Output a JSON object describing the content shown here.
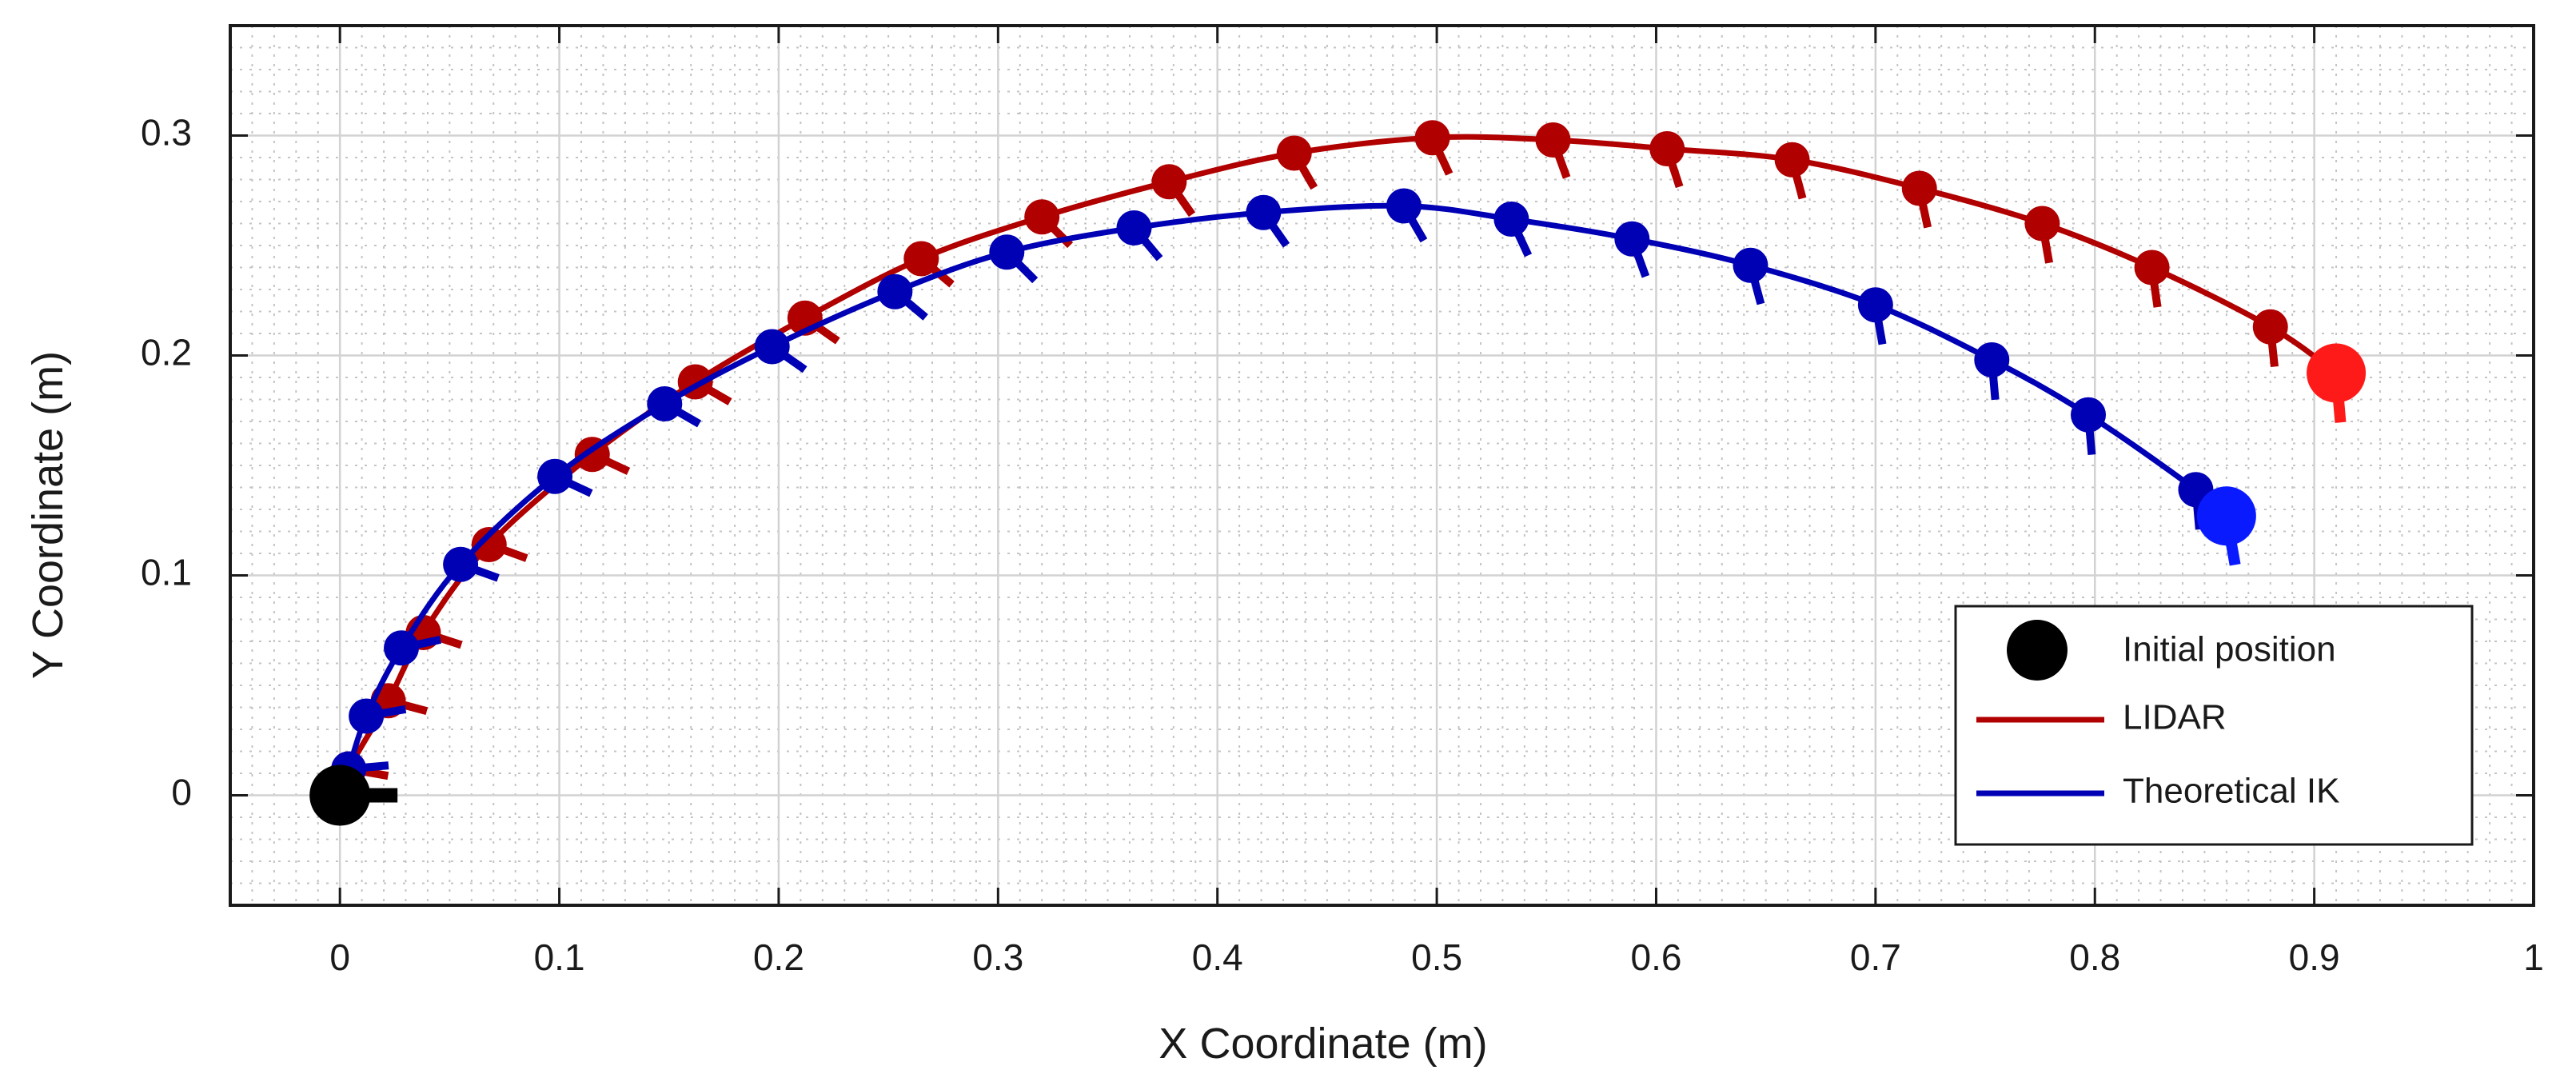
{
  "chart_data": {
    "type": "scatter",
    "title": "",
    "xlabel": "X Coordinate (m)",
    "ylabel": "Y Coordinate (m)",
    "xlim": [
      -0.05,
      1.0
    ],
    "ylim": [
      -0.05,
      0.35
    ],
    "xticks": [
      0,
      0.1,
      0.2,
      0.3,
      0.4,
      0.5,
      0.6,
      0.7,
      0.8,
      0.9,
      1
    ],
    "xtick_labels": [
      "0",
      "0.1",
      "0.2",
      "0.3",
      "0.4",
      "0.5",
      "0.6",
      "0.7",
      "0.8",
      "0.9",
      "1"
    ],
    "yticks": [
      0,
      0.1,
      0.2,
      0.3
    ],
    "ytick_labels": [
      "0",
      "0.1",
      "0.2",
      "0.3"
    ],
    "grid": true,
    "minor_grid": true,
    "legend_position": "bottom-right",
    "initial_position": {
      "label": "Initial position",
      "x": 0.0,
      "y": 0.0,
      "heading_deg": 0,
      "color": "#000000"
    },
    "series": [
      {
        "name": "LIDAR",
        "color": "#b00000",
        "end_color": "#ff1a1a",
        "x": [
          0.0,
          0.004,
          0.022,
          0.038,
          0.068,
          0.115,
          0.162,
          0.212,
          0.265,
          0.32,
          0.378,
          0.435,
          0.498,
          0.553,
          0.605,
          0.662,
          0.72,
          0.776,
          0.826,
          0.88,
          0.91
        ],
        "y": [
          0.0,
          0.012,
          0.043,
          0.074,
          0.114,
          0.155,
          0.188,
          0.217,
          0.244,
          0.263,
          0.279,
          0.292,
          0.299,
          0.298,
          0.294,
          0.289,
          0.276,
          0.26,
          0.24,
          0.213,
          0.192
        ],
        "heading_deg": [
          0,
          -10,
          -15,
          -18,
          -20,
          -25,
          -30,
          -35,
          -40,
          -45,
          -55,
          -60,
          -65,
          -70,
          -72,
          -75,
          -78,
          -80,
          -82,
          -84,
          -85
        ]
      },
      {
        "name": "Theoretical IK",
        "color": "#0000b4",
        "end_color": "#0a1aff",
        "x": [
          0.0,
          0.004,
          0.012,
          0.028,
          0.055,
          0.098,
          0.148,
          0.197,
          0.253,
          0.304,
          0.362,
          0.421,
          0.485,
          0.534,
          0.589,
          0.643,
          0.7,
          0.753,
          0.797,
          0.846,
          0.86
        ],
        "y": [
          0.0,
          0.012,
          0.036,
          0.067,
          0.105,
          0.145,
          0.178,
          0.204,
          0.229,
          0.247,
          0.258,
          0.265,
          0.268,
          0.262,
          0.253,
          0.241,
          0.223,
          0.198,
          0.173,
          0.139,
          0.127
        ],
        "heading_deg": [
          0,
          5,
          10,
          12,
          -20,
          -25,
          -30,
          -35,
          -40,
          -45,
          -50,
          -55,
          -60,
          -65,
          -70,
          -75,
          -80,
          -85,
          -85,
          -85,
          -80
        ]
      }
    ]
  }
}
